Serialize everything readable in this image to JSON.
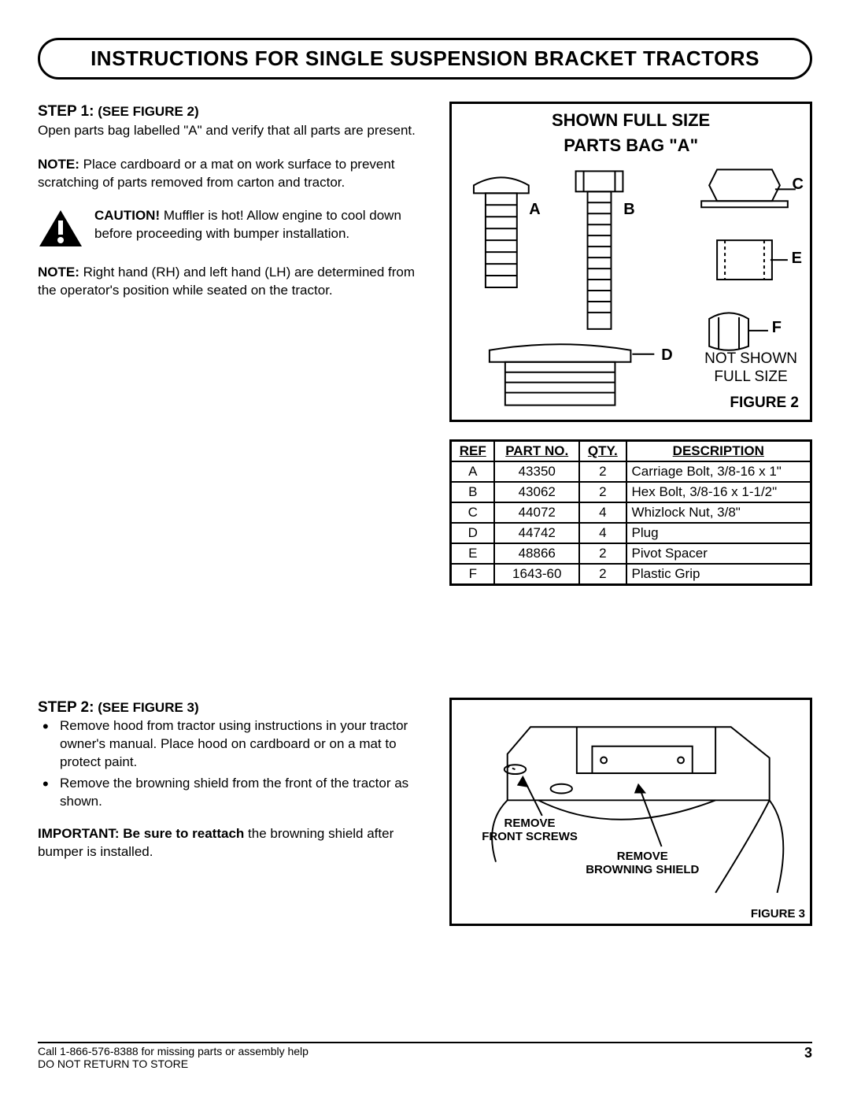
{
  "title": "INSTRUCTIONS FOR SINGLE SUSPENSION BRACKET TRACTORS",
  "step1": {
    "heading": "STEP 1:",
    "ref": "(SEE FIGURE 2)",
    "open": "Open parts bag labelled \"A\" and verify that all parts are present.",
    "noteA_label": "NOTE: ",
    "noteA": "Place cardboard or a mat on work surface to prevent scratching of parts removed from carton and tractor.",
    "caution_label": "CAUTION! ",
    "caution": "Muffler is hot! Allow engine to cool down before proceeding with bumper installation.",
    "noteB_label": "NOTE:  ",
    "noteB": "Right hand (RH) and left hand (LH) are determined from the operator's position while seated on the tractor."
  },
  "figure2": {
    "title1": "SHOWN FULL SIZE",
    "title2": "PARTS BAG \"A\"",
    "labels": {
      "A": "A",
      "B": "B",
      "C": "C",
      "D": "D",
      "E": "E",
      "F": "F"
    },
    "not_shown": "NOT SHOWN\nFULL SIZE",
    "caption": "FIGURE 2"
  },
  "parts_table": {
    "headers": [
      "REF",
      "PART NO.",
      "QTY.",
      "DESCRIPTION"
    ],
    "rows": [
      [
        "A",
        "43350",
        "2",
        "Carriage Bolt, 3/8-16 x 1\""
      ],
      [
        "B",
        "43062",
        "2",
        "Hex Bolt, 3/8-16 x 1-1/2\""
      ],
      [
        "C",
        "44072",
        "4",
        "Whizlock Nut, 3/8\""
      ],
      [
        "D",
        "44742",
        "4",
        "Plug"
      ],
      [
        "E",
        "48866",
        "2",
        "Pivot Spacer"
      ],
      [
        "F",
        "1643-60",
        "2",
        "Plastic Grip"
      ]
    ]
  },
  "step2": {
    "heading": "STEP 2:",
    "ref": "(SEE FIGURE 3)",
    "bullets": [
      "Remove hood from tractor using instructions in your tractor owner's manual. Place hood on cardboard or on a mat to protect paint.",
      "Remove the browning shield from the front of the tractor as shown."
    ],
    "important_label": "IMPORTANT: Be sure to reattach ",
    "important": "the browning shield after bumper is installed."
  },
  "figure3": {
    "remove_screws": "REMOVE\nFRONT SCREWS",
    "remove_shield": "REMOVE\nBROWNING SHIELD",
    "caption": "FIGURE 3"
  },
  "footer": {
    "line1": "Call 1-866-576-8388 for missing parts or assembly help",
    "line2": "DO NOT RETURN TO STORE",
    "page": "3"
  }
}
